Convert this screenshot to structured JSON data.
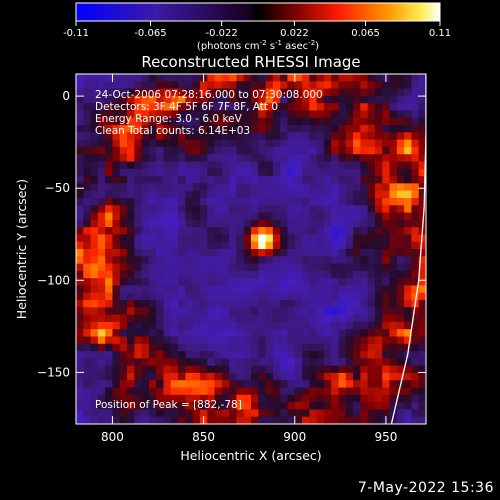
{
  "figure": {
    "title": "Reconstructed RHESSI Image",
    "date_stamp": "7-May-2022 15:36"
  },
  "colorbar": {
    "ticks": [
      "-0.11",
      "-0.065",
      "-0.022",
      "0.022",
      "0.065",
      "0.11"
    ],
    "tick_values": [
      -0.11,
      -0.065,
      -0.022,
      0.022,
      0.065,
      0.11
    ],
    "range": [
      -0.11,
      0.11
    ],
    "unit_parts": [
      "(photons cm",
      "-2",
      " s",
      "-1",
      " asec",
      "-2",
      ")"
    ],
    "colors": {
      "neg_low": "#0000ff",
      "neg_mid": "#3b1aa6",
      "zero": "#000000",
      "pos_low": "#ff1a00",
      "pos_mid": "#ff9a00",
      "pos_high": "#ffffff"
    }
  },
  "annotations": [
    "24-Oct-2006 07:28:16.000 to 07:30:08.000",
    "Detectors: 3F 4F 5F 6F 7F 8F, Att 0",
    "Energy Range: 3.0 - 6.0 keV",
    "Clean    Total counts: 6.14E+03"
  ],
  "peak_label": "Position of Peak = [882,-78]",
  "chart_data": {
    "type": "heatmap",
    "title": "Reconstructed RHESSI Image",
    "xlabel": "Heliocentric X (arcsec)",
    "ylabel": "Heliocentric Y (arcsec)",
    "xlim": [
      780,
      972
    ],
    "ylim": [
      -178,
      12
    ],
    "xticks": [
      800,
      850,
      900,
      950
    ],
    "yticks": [
      0,
      -50,
      -100,
      -150
    ],
    "peak": {
      "x": 882,
      "y": -78
    },
    "limb_curve": {
      "points": [
        [
          953,
          -178
        ],
        [
          962,
          -140
        ],
        [
          968,
          -100
        ],
        [
          971,
          -60
        ],
        [
          972,
          -20
        ],
        [
          972,
          12
        ]
      ]
    },
    "grid": false,
    "legend": "none"
  }
}
